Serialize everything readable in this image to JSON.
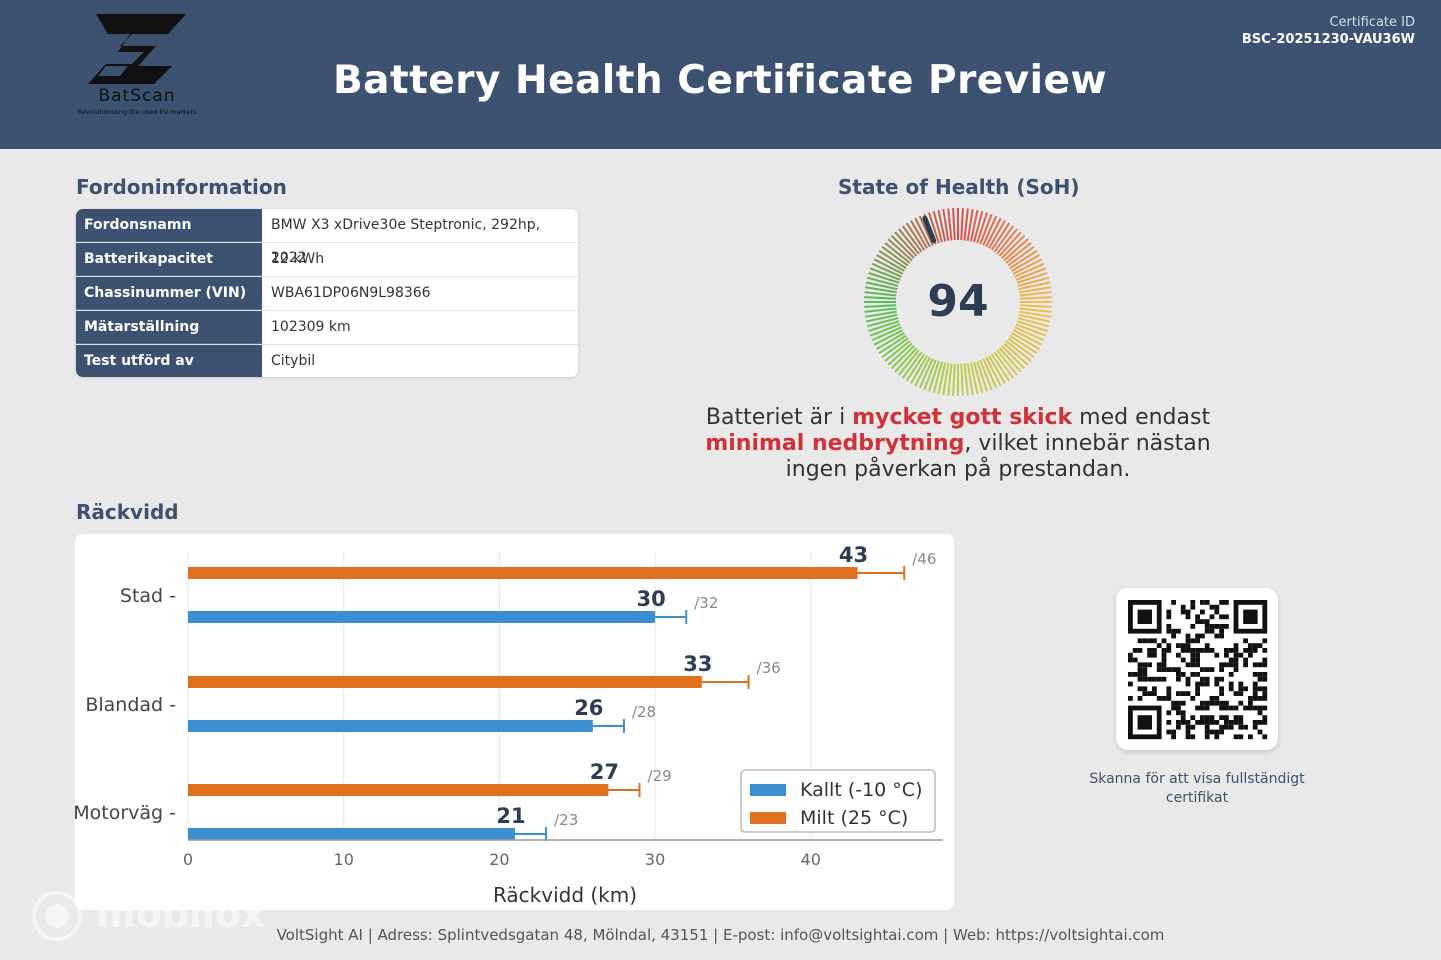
{
  "header": {
    "title": "Battery Health Certificate Preview",
    "certificate_label": "Certificate ID",
    "certificate_id": "BSC-20251230-VAU36W",
    "logo_name": "BatScan",
    "logo_tagline": "Revolutionizing the used EV markets",
    "logo_icon": "batscan-b-logo"
  },
  "vehicle": {
    "section_title": "Fordoninformation",
    "rows": [
      {
        "key": "Fordonsnamn",
        "value": "BMW X3 xDrive30e Steptronic, 292hp, 2022"
      },
      {
        "key": "Batterikapacitet",
        "value": "12 kWh"
      },
      {
        "key": "Chassinummer (VIN)",
        "value": "WBA61DP06N9L98366"
      },
      {
        "key": "Mätarställning",
        "value": "102309 km"
      },
      {
        "key": "Test utförd av",
        "value": "Citybil"
      }
    ]
  },
  "soh": {
    "section_title": "State of Health (SoH)",
    "value": "94",
    "level_fraction": 0.94,
    "summary_part1": "Batteriet är i ",
    "summary_hl1": "mycket gott skick",
    "summary_part2": " med endast ",
    "summary_hl2": "minimal nedbrytning",
    "summary_part3": ", vilket innebär nästan ingen påverkan på prestandan."
  },
  "range": {
    "section_title": "Räckvidd"
  },
  "chart_data": {
    "type": "bar",
    "orientation": "horizontal",
    "categories": [
      "Stad",
      "Blandad",
      "Motorväg"
    ],
    "xlabel": "Räckvidd (km)",
    "xlim": [
      0,
      48
    ],
    "xticks": [
      0,
      10,
      20,
      30,
      40
    ],
    "grid": true,
    "legend_position": "bottom-right",
    "series": [
      {
        "name": "Milt (25 °C)",
        "color": "#e07020",
        "values": [
          43,
          33,
          27
        ],
        "max_values": [
          46,
          36,
          29
        ],
        "labels": [
          "43",
          "33",
          "27"
        ],
        "max_labels": [
          "/46",
          "/36",
          "/29"
        ]
      },
      {
        "name": "Kallt (-10 °C)",
        "color": "#3a8fd0",
        "values": [
          30,
          26,
          21
        ],
        "max_values": [
          32,
          28,
          23
        ],
        "labels": [
          "30",
          "26",
          "21"
        ],
        "max_labels": [
          "/32",
          "/28",
          "/23"
        ]
      }
    ]
  },
  "qr": {
    "caption": "Skanna för att visa fullständigt certifikat",
    "icon": "qr-code"
  },
  "footer": {
    "text": "VoltSight AI | Adress: Splintvedsgatan 48, Mölndal, 43151 | E-post: info@voltsightai.com | Web: https://voltsightai.com"
  },
  "watermark": {
    "text": "mobilox"
  },
  "colors": {
    "header_bg": "#3d5170",
    "highlight_red": "#d0323a",
    "mild": "#e07020",
    "cold": "#3a8fd0"
  }
}
